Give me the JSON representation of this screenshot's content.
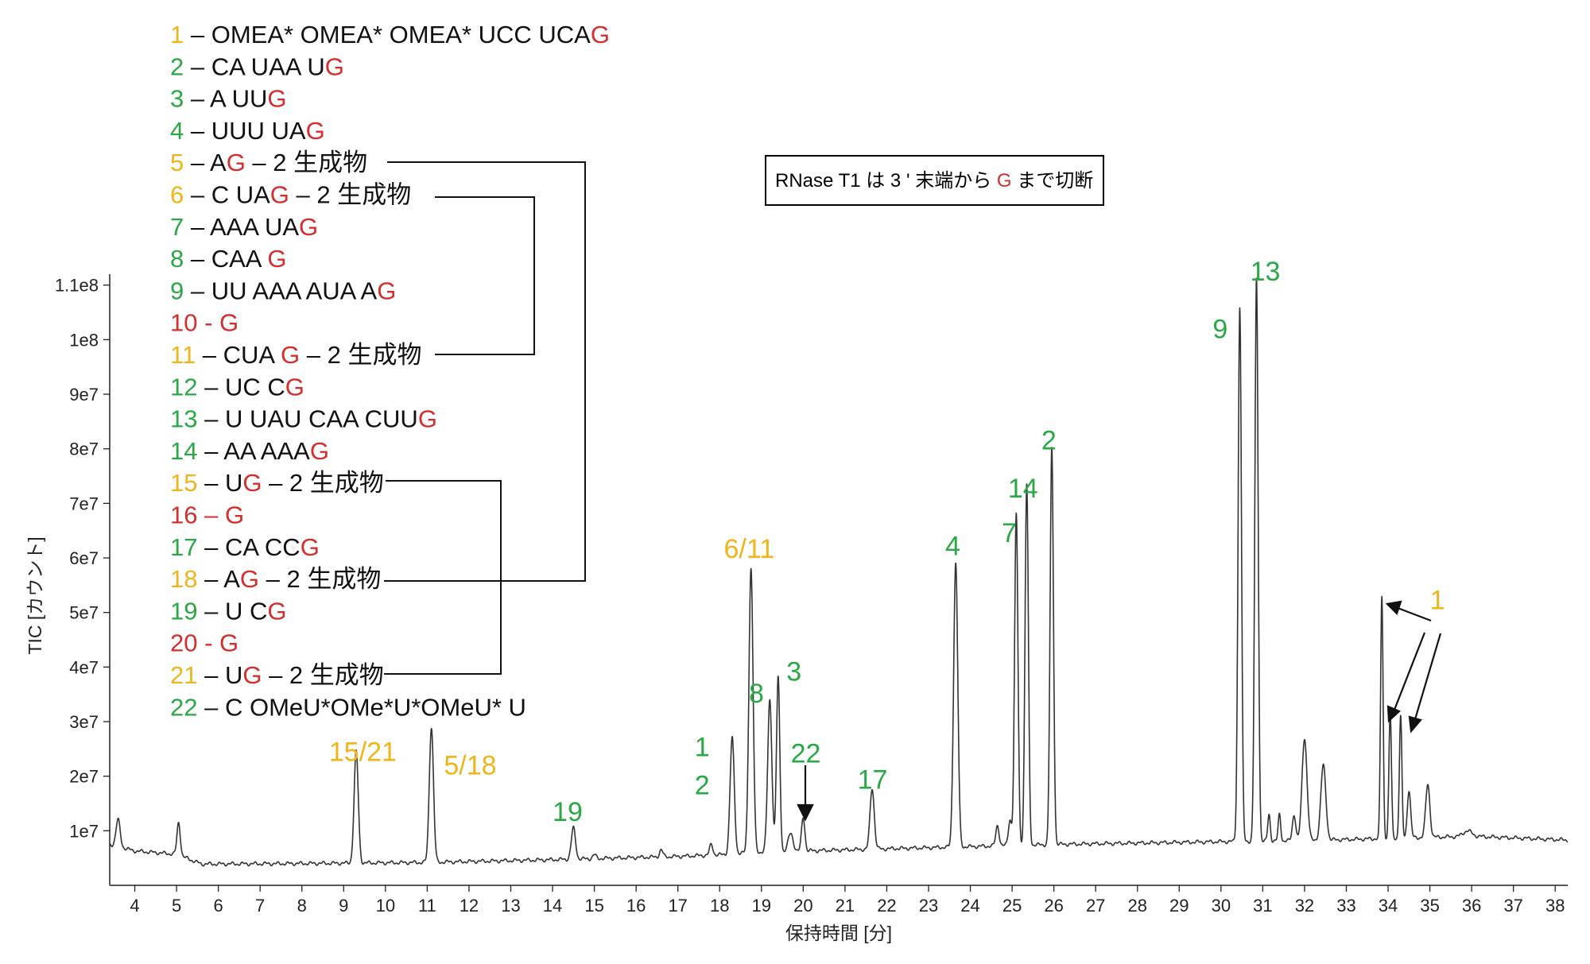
{
  "colors": {
    "green": "#2aa845",
    "yellow": "#f0b51a",
    "red": "#d42f2f",
    "black": "#111111",
    "trace": "#333333"
  },
  "note": {
    "pre": "RNase T1 は 3 ' 末端から ",
    "hl": "G",
    "post": " まで切断"
  },
  "legend": [
    {
      "num": "1",
      "color": "yellow",
      "parts": [
        {
          "t": " – OMEA* OMEA* OMEA* UCC UCA"
        },
        {
          "t": "G",
          "c": "red"
        }
      ]
    },
    {
      "num": "2",
      "color": "green",
      "parts": [
        {
          "t": " – CA UAA U"
        },
        {
          "t": "G",
          "c": "red"
        }
      ]
    },
    {
      "num": "3",
      "color": "green",
      "parts": [
        {
          "t": " – A UU"
        },
        {
          "t": "G",
          "c": "red"
        }
      ]
    },
    {
      "num": "4",
      "color": "green",
      "parts": [
        {
          "t": " – UUU UA"
        },
        {
          "t": "G",
          "c": "red"
        }
      ]
    },
    {
      "num": "5",
      "color": "yellow",
      "parts": [
        {
          "t": " – A"
        },
        {
          "t": "G",
          "c": "red"
        },
        {
          "t": " – 2 生成物"
        }
      ]
    },
    {
      "num": "6",
      "color": "yellow",
      "parts": [
        {
          "t": " – C UA"
        },
        {
          "t": "G",
          "c": "red"
        },
        {
          "t": " – 2 生成物"
        }
      ]
    },
    {
      "num": "7",
      "color": "green",
      "parts": [
        {
          "t": " – AAA UA"
        },
        {
          "t": "G",
          "c": "red"
        }
      ]
    },
    {
      "num": "8",
      "color": "green",
      "parts": [
        {
          "t": " – CAA "
        },
        {
          "t": "G",
          "c": "red"
        }
      ]
    },
    {
      "num": "9",
      "color": "green",
      "parts": [
        {
          "t": " – UU AAA AUA A"
        },
        {
          "t": "G",
          "c": "red"
        }
      ]
    },
    {
      "num": "10",
      "color": "red",
      "parts": [
        {
          "t": " - G",
          "c": "red"
        }
      ]
    },
    {
      "num": "11",
      "color": "yellow",
      "parts": [
        {
          "t": " – CUA "
        },
        {
          "t": "G",
          "c": "red"
        },
        {
          "t": " – 2 生成物"
        }
      ]
    },
    {
      "num": "12",
      "color": "green",
      "parts": [
        {
          "t": " – UC C"
        },
        {
          "t": "G",
          "c": "red"
        }
      ]
    },
    {
      "num": "13",
      "color": "green",
      "parts": [
        {
          "t": " – U UAU CAA CUU"
        },
        {
          "t": "G",
          "c": "red"
        }
      ]
    },
    {
      "num": "14",
      "color": "green",
      "parts": [
        {
          "t": " – AA AAA"
        },
        {
          "t": "G",
          "c": "red"
        }
      ]
    },
    {
      "num": "15",
      "color": "yellow",
      "parts": [
        {
          "t": " – U"
        },
        {
          "t": "G",
          "c": "red"
        },
        {
          "t": " – 2 生成物"
        }
      ]
    },
    {
      "num": "16",
      "color": "red",
      "parts": [
        {
          "t": " – G",
          "c": "red"
        }
      ]
    },
    {
      "num": "17",
      "color": "green",
      "parts": [
        {
          "t": " – CA CC"
        },
        {
          "t": "G",
          "c": "red"
        }
      ]
    },
    {
      "num": "18",
      "color": "yellow",
      "parts": [
        {
          "t": " – A"
        },
        {
          "t": "G",
          "c": "red"
        },
        {
          "t": " – 2 生成物"
        }
      ]
    },
    {
      "num": "19",
      "color": "green",
      "parts": [
        {
          "t": " – U C"
        },
        {
          "t": "G",
          "c": "red"
        }
      ]
    },
    {
      "num": "20",
      "color": "red",
      "parts": [
        {
          "t": " - G",
          "c": "red"
        }
      ]
    },
    {
      "num": "21",
      "color": "yellow",
      "parts": [
        {
          "t": " – U"
        },
        {
          "t": "G",
          "c": "red"
        },
        {
          "t": " – 2 生成物"
        }
      ]
    },
    {
      "num": "22",
      "color": "green",
      "parts": [
        {
          "t": " – C OMeU*OMe*U*OMeU* U"
        }
      ]
    }
  ],
  "chart_data": {
    "type": "line",
    "title": "",
    "xlabel": "保持時間 [分]",
    "ylabel": "TIC [カウント]",
    "xlim": [
      3.4,
      38.3
    ],
    "ylim": [
      0,
      112000000
    ],
    "xticks": [
      4,
      5,
      6,
      7,
      8,
      9,
      10,
      11,
      12,
      13,
      14,
      15,
      16,
      17,
      18,
      19,
      20,
      21,
      22,
      23,
      24,
      25,
      26,
      27,
      28,
      29,
      30,
      31,
      32,
      33,
      34,
      35,
      36,
      37,
      38
    ],
    "yticks": [
      10000000,
      20000000,
      30000000,
      40000000,
      50000000,
      60000000,
      70000000,
      80000000,
      90000000,
      100000000,
      110000000
    ],
    "ytick_labels": [
      "1e7",
      "2e7",
      "3e7",
      "4e7",
      "5e7",
      "6e7",
      "7e7",
      "8e7",
      "9e7",
      "1e8",
      "1.1e8"
    ],
    "grid": false,
    "baseline": [
      [
        3.4,
        7500000
      ],
      [
        4.0,
        6300000
      ],
      [
        5.0,
        5700000
      ],
      [
        5.6,
        3900000
      ],
      [
        8.0,
        4000000
      ],
      [
        11.0,
        4200000
      ],
      [
        14.0,
        4700000
      ],
      [
        17.0,
        5300000
      ],
      [
        18.0,
        5600000
      ],
      [
        19.0,
        6100000
      ],
      [
        21.0,
        6500000
      ],
      [
        24.0,
        7100000
      ],
      [
        26.0,
        7500000
      ],
      [
        30.0,
        8000000
      ],
      [
        32.0,
        8200000
      ],
      [
        34.0,
        8600000
      ],
      [
        36.0,
        9000000
      ],
      [
        38.3,
        8300000
      ]
    ],
    "peaks": [
      {
        "rt": 3.6,
        "height": 12000000,
        "width": 0.05
      },
      {
        "rt": 5.05,
        "height": 11500000,
        "width": 0.04
      },
      {
        "rt": 9.3,
        "height": 24500000,
        "width": 0.05
      },
      {
        "rt": 11.1,
        "height": 29000000,
        "width": 0.05
      },
      {
        "rt": 14.5,
        "height": 10500000,
        "width": 0.05
      },
      {
        "rt": 15.0,
        "height": 5600000,
        "width": 0.04
      },
      {
        "rt": 16.6,
        "height": 6500000,
        "width": 0.04
      },
      {
        "rt": 17.8,
        "height": 7500000,
        "width": 0.04
      },
      {
        "rt": 18.3,
        "height": 27000000,
        "width": 0.05
      },
      {
        "rt": 18.75,
        "height": 58000000,
        "width": 0.05
      },
      {
        "rt": 19.2,
        "height": 34000000,
        "width": 0.05
      },
      {
        "rt": 19.4,
        "height": 38000000,
        "width": 0.04
      },
      {
        "rt": 19.7,
        "height": 9500000,
        "width": 0.06
      },
      {
        "rt": 20.0,
        "height": 12500000,
        "width": 0.04
      },
      {
        "rt": 21.65,
        "height": 17800000,
        "width": 0.05
      },
      {
        "rt": 23.65,
        "height": 59000000,
        "width": 0.05
      },
      {
        "rt": 24.65,
        "height": 11000000,
        "width": 0.04
      },
      {
        "rt": 24.95,
        "height": 12000000,
        "width": 0.04
      },
      {
        "rt": 25.1,
        "height": 68000000,
        "width": 0.04
      },
      {
        "rt": 25.35,
        "height": 73500000,
        "width": 0.04
      },
      {
        "rt": 25.95,
        "height": 80000000,
        "width": 0.04
      },
      {
        "rt": 30.45,
        "height": 106000000,
        "width": 0.04
      },
      {
        "rt": 30.85,
        "height": 111000000,
        "width": 0.04
      },
      {
        "rt": 31.15,
        "height": 13000000,
        "width": 0.03
      },
      {
        "rt": 31.4,
        "height": 13000000,
        "width": 0.03
      },
      {
        "rt": 31.75,
        "height": 13000000,
        "width": 0.04
      },
      {
        "rt": 32.0,
        "height": 27000000,
        "width": 0.06
      },
      {
        "rt": 32.45,
        "height": 22000000,
        "width": 0.06
      },
      {
        "rt": 33.85,
        "height": 53000000,
        "width": 0.03
      },
      {
        "rt": 34.05,
        "height": 31500000,
        "width": 0.03
      },
      {
        "rt": 34.3,
        "height": 31000000,
        "width": 0.03
      },
      {
        "rt": 34.5,
        "height": 17500000,
        "width": 0.04
      },
      {
        "rt": 34.95,
        "height": 18500000,
        "width": 0.05
      },
      {
        "rt": 35.9,
        "height": 10000000,
        "width": 0.1
      }
    ],
    "annotations": [
      {
        "lines": [
          "15/21"
        ],
        "color": "yellow",
        "x": 8.65,
        "y": 22800000
      },
      {
        "lines": [
          "5/18"
        ],
        "color": "yellow",
        "x": 11.4,
        "y": 20300000
      },
      {
        "lines": [
          "19"
        ],
        "color": "green",
        "x": 14.0,
        "y": 11800000
      },
      {
        "lines": [
          "1",
          "2"
        ],
        "color": "green",
        "x": 17.4,
        "y": 23700000
      },
      {
        "lines": [
          "6/11"
        ],
        "color": "yellow",
        "x": 18.1,
        "y": 60000000
      },
      {
        "lines": [
          "8"
        ],
        "color": "green",
        "x": 18.7,
        "y": 33500000
      },
      {
        "lines": [
          "3"
        ],
        "color": "green",
        "x": 19.6,
        "y": 37500000
      },
      {
        "lines": [
          "22"
        ],
        "color": "green",
        "x": 19.7,
        "y": 22500000
      },
      {
        "lines": [
          "17"
        ],
        "color": "green",
        "x": 21.3,
        "y": 17700000
      },
      {
        "lines": [
          "4"
        ],
        "color": "green",
        "x": 23.4,
        "y": 60500000
      },
      {
        "lines": [
          "7"
        ],
        "color": "green",
        "x": 24.75,
        "y": 62900000
      },
      {
        "lines": [
          "14"
        ],
        "color": "green",
        "x": 24.9,
        "y": 71100000
      },
      {
        "lines": [
          "2"
        ],
        "color": "green",
        "x": 25.7,
        "y": 79900000
      },
      {
        "lines": [
          "9"
        ],
        "color": "green",
        "x": 29.8,
        "y": 100300000
      },
      {
        "lines": [
          "13"
        ],
        "color": "green",
        "x": 30.7,
        "y": 110800000
      },
      {
        "lines": [
          "1"
        ],
        "color": "yellow",
        "x": 35.0,
        "y": 50600000
      }
    ]
  }
}
